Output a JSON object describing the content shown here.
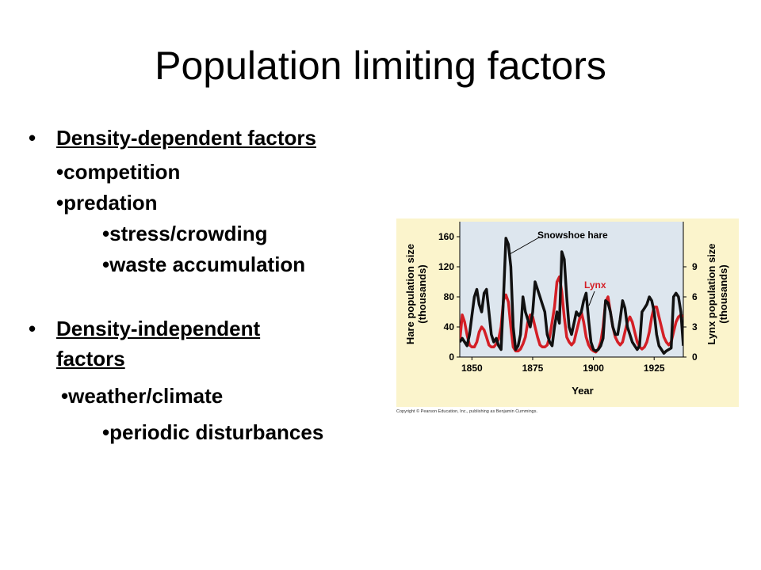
{
  "slide": {
    "title": "Population limiting factors",
    "bullets": {
      "dd_heading": "Density-dependent factors",
      "competition": "•competition",
      "predation": "•predation",
      "stress": "•stress/crowding",
      "waste": "•waste accumulation",
      "di_heading_1": "Density-independent",
      "di_heading_2": "factors",
      "weather": "•weather/climate",
      "periodic": "•periodic disturbances"
    },
    "bullet_glyph": "•"
  },
  "copyright": "Copyright © Pearson Education, Inc., publishing as Benjamin Cummings.",
  "chart_data": {
    "type": "line",
    "xlabel": "Year",
    "ylabel_left": [
      "Hare population size",
      "(thousands)"
    ],
    "ylabel_right": [
      "Lynx population size",
      "(thousands)"
    ],
    "x_ticks": [
      1850,
      1875,
      1900,
      1925
    ],
    "y_left_ticks": [
      0,
      40,
      80,
      120,
      160
    ],
    "y_right_ticks": [
      0,
      3,
      6,
      9
    ],
    "xlim": [
      1845,
      1937
    ],
    "ylim_left": [
      0,
      180
    ],
    "ylim_right": [
      0,
      13.5
    ],
    "colors": {
      "hare": "#111111",
      "lynx": "#d41f26",
      "plot_bg": "#dde6ee",
      "outer_bg": "#fbf4cc"
    },
    "series": [
      {
        "name": "Snowshoe hare",
        "axis": "left",
        "x": [
          1845,
          1846,
          1847,
          1848,
          1849,
          1850,
          1851,
          1852,
          1853,
          1854,
          1855,
          1856,
          1857,
          1858,
          1859,
          1860,
          1861,
          1862,
          1863,
          1864,
          1865,
          1866,
          1867,
          1868,
          1869,
          1870,
          1871,
          1872,
          1873,
          1874,
          1875,
          1876,
          1877,
          1878,
          1879,
          1880,
          1881,
          1882,
          1883,
          1884,
          1885,
          1886,
          1887,
          1888,
          1889,
          1890,
          1891,
          1892,
          1893,
          1894,
          1895,
          1896,
          1897,
          1898,
          1899,
          1900,
          1901,
          1902,
          1903,
          1904,
          1905,
          1906,
          1907,
          1908,
          1909,
          1910,
          1911,
          1912,
          1913,
          1914,
          1915,
          1916,
          1917,
          1918,
          1919,
          1920,
          1921,
          1922,
          1923,
          1924,
          1925,
          1926,
          1927,
          1928,
          1929,
          1930,
          1931,
          1932,
          1933,
          1934,
          1935,
          1936,
          1937
        ],
        "y": [
          20,
          25,
          20,
          15,
          30,
          55,
          80,
          90,
          70,
          60,
          85,
          90,
          60,
          30,
          20,
          25,
          15,
          10,
          80,
          158,
          150,
          120,
          40,
          10,
          15,
          30,
          80,
          60,
          50,
          40,
          60,
          100,
          90,
          80,
          70,
          60,
          30,
          20,
          15,
          40,
          60,
          45,
          140,
          130,
          80,
          40,
          30,
          45,
          60,
          55,
          60,
          75,
          85,
          50,
          20,
          10,
          8,
          10,
          15,
          25,
          75,
          72,
          60,
          40,
          30,
          30,
          50,
          75,
          65,
          40,
          30,
          20,
          15,
          10,
          15,
          60,
          65,
          70,
          80,
          75,
          60,
          30,
          15,
          10,
          5,
          8,
          10,
          12,
          80,
          85,
          80,
          60,
          15
        ]
      },
      {
        "name": "Lynx",
        "axis": "right",
        "x": [
          1845,
          1846,
          1847,
          1848,
          1849,
          1850,
          1851,
          1852,
          1853,
          1854,
          1855,
          1856,
          1857,
          1858,
          1859,
          1860,
          1861,
          1862,
          1863,
          1864,
          1865,
          1866,
          1867,
          1868,
          1869,
          1870,
          1871,
          1872,
          1873,
          1874,
          1875,
          1876,
          1877,
          1878,
          1879,
          1880,
          1881,
          1882,
          1883,
          1884,
          1885,
          1886,
          1887,
          1888,
          1889,
          1890,
          1891,
          1892,
          1893,
          1894,
          1895,
          1896,
          1897,
          1898,
          1899,
          1900,
          1901,
          1902,
          1903,
          1904,
          1905,
          1906,
          1907,
          1908,
          1909,
          1910,
          1911,
          1912,
          1913,
          1914,
          1915,
          1916,
          1917,
          1918,
          1919,
          1920,
          1921,
          1922,
          1923,
          1924,
          1925,
          1926,
          1927,
          1928,
          1929,
          1930,
          1931,
          1932,
          1933,
          1934,
          1935,
          1936,
          1937
        ],
        "y": [
          1.5,
          4.2,
          3.5,
          2.2,
          1.2,
          1,
          1,
          1.5,
          2.5,
          3,
          2.7,
          2,
          1.2,
          1,
          1,
          1.3,
          1.8,
          3,
          5.7,
          6.2,
          5.5,
          3,
          1,
          0.6,
          0.6,
          0.8,
          1.3,
          2,
          3.5,
          4.2,
          4,
          3,
          2,
          1.2,
          1,
          1,
          1.2,
          2,
          3.5,
          5,
          7.5,
          8,
          6.5,
          4,
          2,
          1.5,
          1.2,
          1.5,
          2.5,
          3.5,
          4.5,
          3.5,
          2,
          1.2,
          0.8,
          0.6,
          0.5,
          0.8,
          1.5,
          3,
          5.5,
          6,
          4.5,
          3,
          2,
          1.5,
          1.2,
          1.5,
          2.5,
          3.5,
          4,
          3.5,
          2.5,
          1.5,
          1,
          0.8,
          1,
          1.5,
          2.5,
          4,
          5,
          5,
          4,
          3,
          2,
          1.5,
          1.2,
          1.5,
          2.5,
          3.5,
          4,
          4.2,
          4
        ]
      }
    ],
    "annotations": [
      {
        "text": "Snowshoe hare",
        "target_series": "Snowshoe hare"
      },
      {
        "text": "Lynx",
        "target_series": "Lynx"
      }
    ]
  }
}
